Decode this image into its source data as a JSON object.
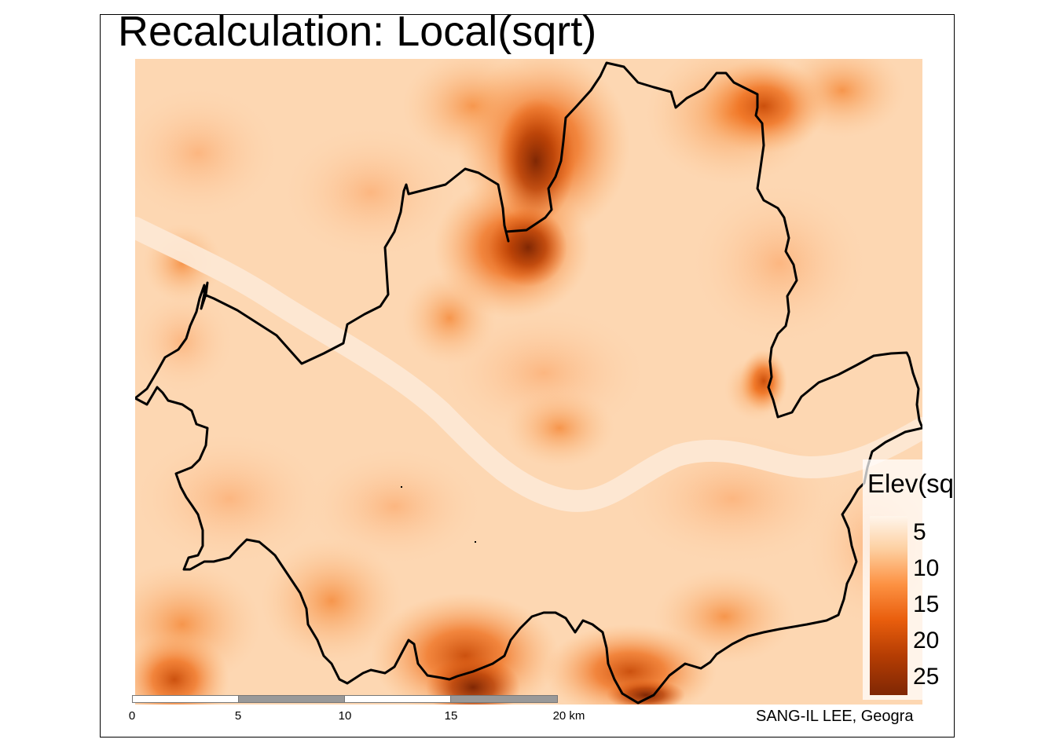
{
  "map": {
    "title": "Recalculation: Local(sqrt)",
    "legend": {
      "title": "Elev(sqrt)",
      "ticks": [
        "5",
        "10",
        "15",
        "20",
        "25"
      ],
      "palette": [
        "#fff5eb",
        "#fdd1a3",
        "#fd9243",
        "#e95e0d",
        "#b53d03",
        "#7f2704"
      ]
    },
    "scale_bar": {
      "labels": [
        "0",
        "5",
        "10",
        "15",
        "20 km"
      ]
    },
    "credit": "SANG-IL LEE, Geogra",
    "colors": {
      "boundary": "#000000",
      "river": "#fde8d4",
      "frame": "#000000"
    }
  }
}
